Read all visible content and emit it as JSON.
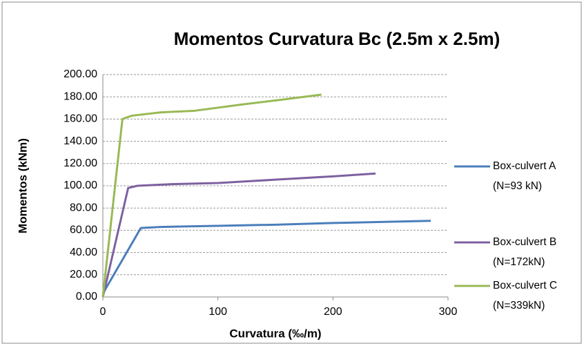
{
  "chart_data": {
    "type": "line",
    "title": "Momentos Curvatura Bc (2.5m x 2.5m)",
    "xlabel": "Curvatura (‰/m)",
    "ylabel": "Momentos (kNm)",
    "xlim": [
      0,
      300
    ],
    "xticks": [
      0,
      100,
      200,
      300
    ],
    "ylim": [
      0,
      200
    ],
    "yticks": [
      {
        "value": 0,
        "label": "0.00"
      },
      {
        "value": 20,
        "label": "20.00"
      },
      {
        "value": 40,
        "label": "40.00"
      },
      {
        "value": 60,
        "label": "60.00"
      },
      {
        "value": 80,
        "label": "80.00"
      },
      {
        "value": 100,
        "label": "100.00"
      },
      {
        "value": 120,
        "label": "120.00"
      },
      {
        "value": 140,
        "label": "140.00"
      },
      {
        "value": 160,
        "label": "160.00"
      },
      {
        "value": 180,
        "label": "180.00"
      },
      {
        "value": 200,
        "label": "200.00"
      }
    ],
    "grid": true,
    "legend": "right",
    "series": [
      {
        "name": "Box-culvert A (N=93 kN)",
        "color": "#4a7ebb",
        "x": [
          0,
          33,
          50,
          100,
          150,
          200,
          285
        ],
        "values": [
          3,
          62,
          63,
          64,
          65,
          66.5,
          68.5
        ]
      },
      {
        "name": "Box-culvert B (N=172kN)",
        "color": "#7d60a0",
        "x": [
          0,
          22,
          30,
          60,
          100,
          150,
          200,
          237
        ],
        "values": [
          0,
          98,
          100,
          101.5,
          102.5,
          105.5,
          108.5,
          111
        ]
      },
      {
        "name": "Box-culvert C (N=339kN)",
        "color": "#98b954",
        "x": [
          0,
          17,
          25,
          50,
          80,
          120,
          160,
          190
        ],
        "values": [
          0,
          160,
          163,
          166,
          167.5,
          173,
          178,
          182
        ]
      }
    ]
  }
}
